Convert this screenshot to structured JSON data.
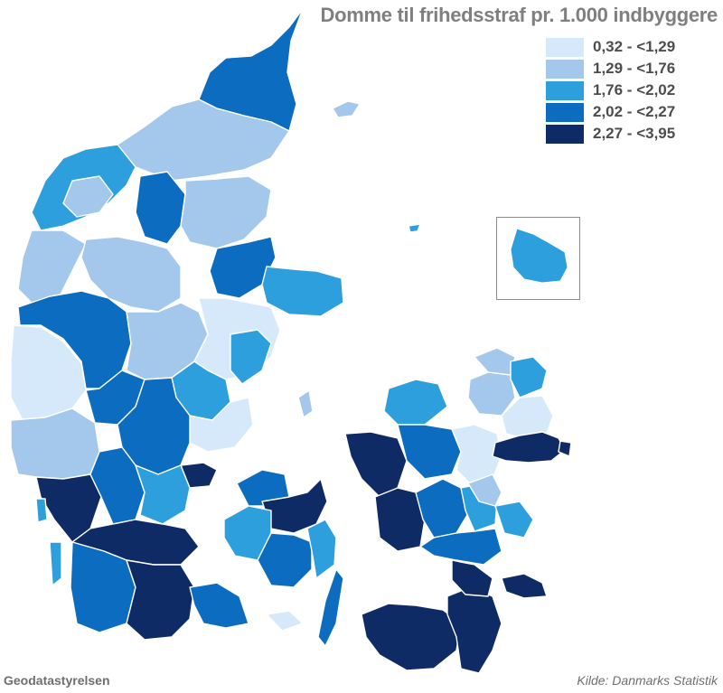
{
  "title": "Domme til frihedsstraf pr. 1.000 indbyggere",
  "legend": [
    {
      "label": "0,32 - <1,29",
      "color": "#d6e9fa"
    },
    {
      "label": "1,29 - <1,76",
      "color": "#a3c8ec"
    },
    {
      "label": "1,76 - <2,02",
      "color": "#2d9fdd"
    },
    {
      "label": "2,02 - <2,27",
      "color": "#0b6cc0"
    },
    {
      "label": "2,27 - <3,95",
      "color": "#0f2b65"
    }
  ],
  "credit": "Geodatastyrelsen",
  "source": "Kilde: Danmarks Statistik"
}
